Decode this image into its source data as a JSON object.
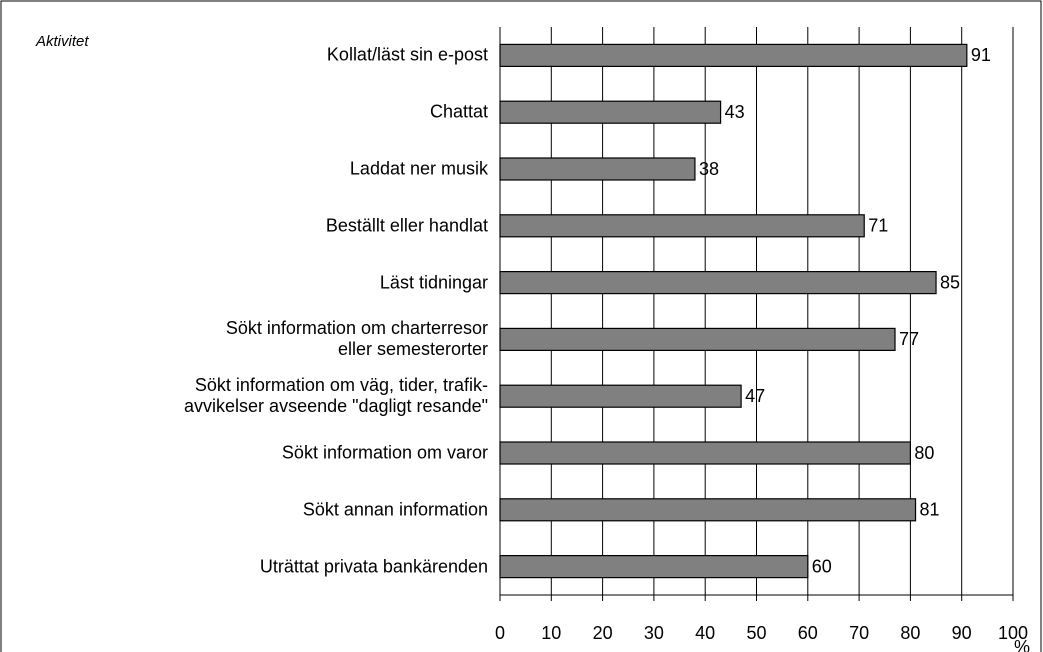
{
  "chart_data": {
    "type": "bar",
    "orientation": "horizontal",
    "title": "Aktivitet",
    "x_label": "%",
    "categories": [
      "Kollat/läst sin e-post",
      "Chattat",
      "Laddat ner musik",
      "Beställt eller handlat",
      "Läst tidningar",
      "Sökt information om charterresor\neller semesterorter",
      "Sökt information om väg, tider, trafik-\navvikelser avseende \"dagligt resande\"",
      "Sökt information om varor",
      "Sökt annan information",
      "Uträttat privata bankärenden"
    ],
    "values": [
      91,
      43,
      38,
      71,
      85,
      77,
      47,
      80,
      81,
      60
    ],
    "color": "#808080",
    "xlim": [
      0,
      100
    ],
    "xticks": [
      0,
      10,
      20,
      30,
      40,
      50,
      60,
      70,
      80,
      90,
      100
    ],
    "grid": true
  }
}
